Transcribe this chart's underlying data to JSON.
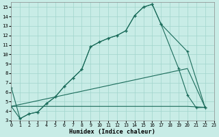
{
  "xlabel": "Humidex (Indice chaleur)",
  "bg_color": "#c8ece6",
  "grid_color": "#a0d4cc",
  "line_color": "#1a6b5a",
  "xlim": [
    0,
    23
  ],
  "ylim": [
    3,
    15.5
  ],
  "xticks": [
    0,
    1,
    2,
    3,
    4,
    5,
    6,
    7,
    8,
    9,
    10,
    11,
    12,
    13,
    14,
    15,
    16,
    17,
    18,
    19,
    20,
    21,
    22,
    23
  ],
  "yticks": [
    3,
    4,
    5,
    6,
    7,
    8,
    9,
    10,
    11,
    12,
    13,
    14,
    15
  ],
  "line1_x": [
    0,
    1,
    2,
    3,
    4,
    5,
    6,
    7,
    8,
    9,
    10,
    11,
    12,
    13,
    14,
    15,
    16,
    17,
    20,
    22
  ],
  "line1_y": [
    6.5,
    3.2,
    3.7,
    3.9,
    4.8,
    5.5,
    6.6,
    7.5,
    8.4,
    10.8,
    11.3,
    11.7,
    12.0,
    12.5,
    14.1,
    15.0,
    15.3,
    13.2,
    10.3,
    4.4
  ],
  "line2_x": [
    0,
    1,
    2,
    3,
    4,
    5,
    6,
    7,
    8,
    9,
    10,
    11,
    12,
    13,
    14,
    15,
    16,
    17,
    19,
    20,
    21,
    22
  ],
  "line2_y": [
    4.5,
    3.2,
    3.7,
    3.9,
    4.8,
    5.5,
    6.6,
    7.5,
    8.4,
    10.8,
    11.3,
    11.7,
    12.0,
    12.5,
    14.1,
    15.0,
    15.3,
    13.2,
    8.5,
    5.7,
    4.35,
    4.4
  ],
  "line3_x": [
    0,
    20,
    22
  ],
  "line3_y": [
    4.5,
    8.5,
    4.4
  ],
  "line4_x": [
    0,
    20,
    22
  ],
  "line4_y": [
    4.5,
    4.5,
    4.4
  ]
}
